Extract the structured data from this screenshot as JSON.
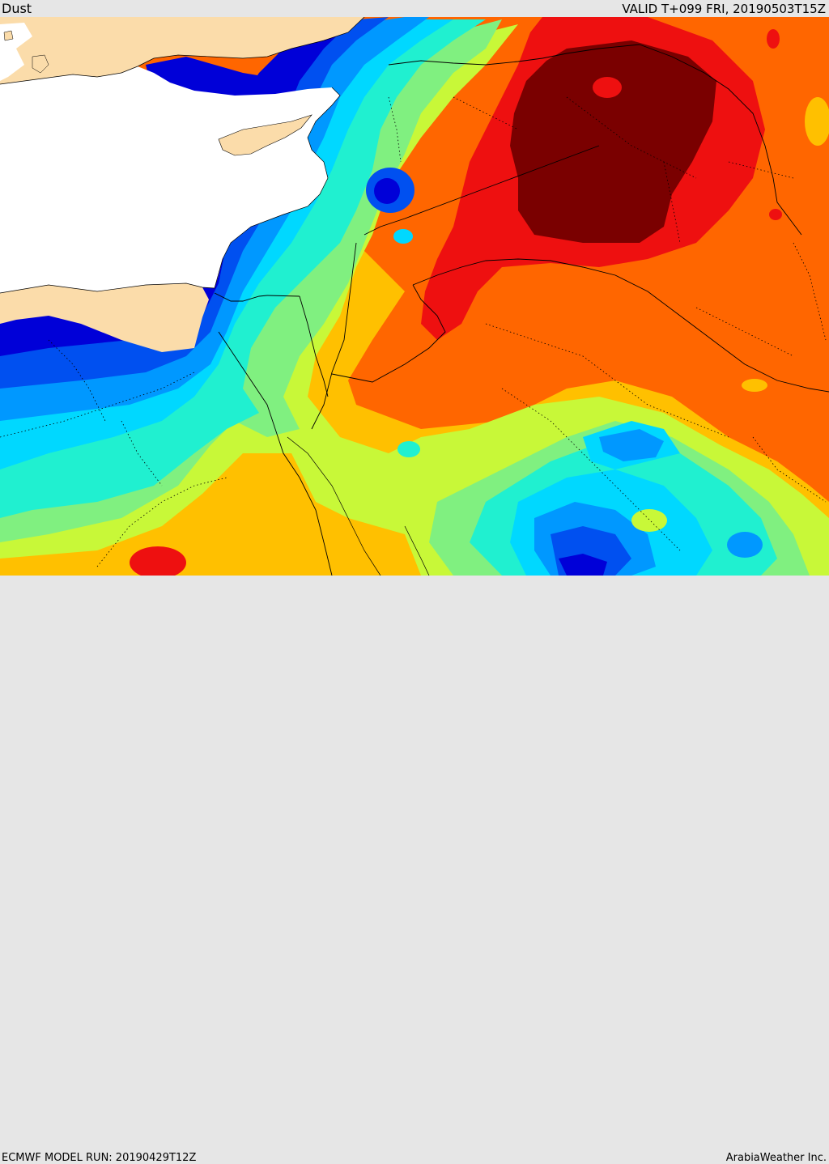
{
  "header": {
    "title": "Dust",
    "valid": "VALID T+099 FRI, 20190503T15Z"
  },
  "footer": {
    "model_run": "ECMWF MODEL RUN: 20190429T12Z",
    "credit": "ArabiaWeather Inc."
  },
  "legend_colors": {
    "land": "#fbdcaa",
    "sea": "#ffffff",
    "level1": "#0000d8",
    "level2": "#0050f0",
    "level3": "#0098ff",
    "level4": "#00d8ff",
    "level5": "#20f0d0",
    "level6": "#80f080",
    "level7": "#c8f838",
    "level8": "#fff000",
    "level9": "#ffc000",
    "level10": "#ff6600",
    "level11": "#ee1010",
    "level12": "#7a0000"
  }
}
